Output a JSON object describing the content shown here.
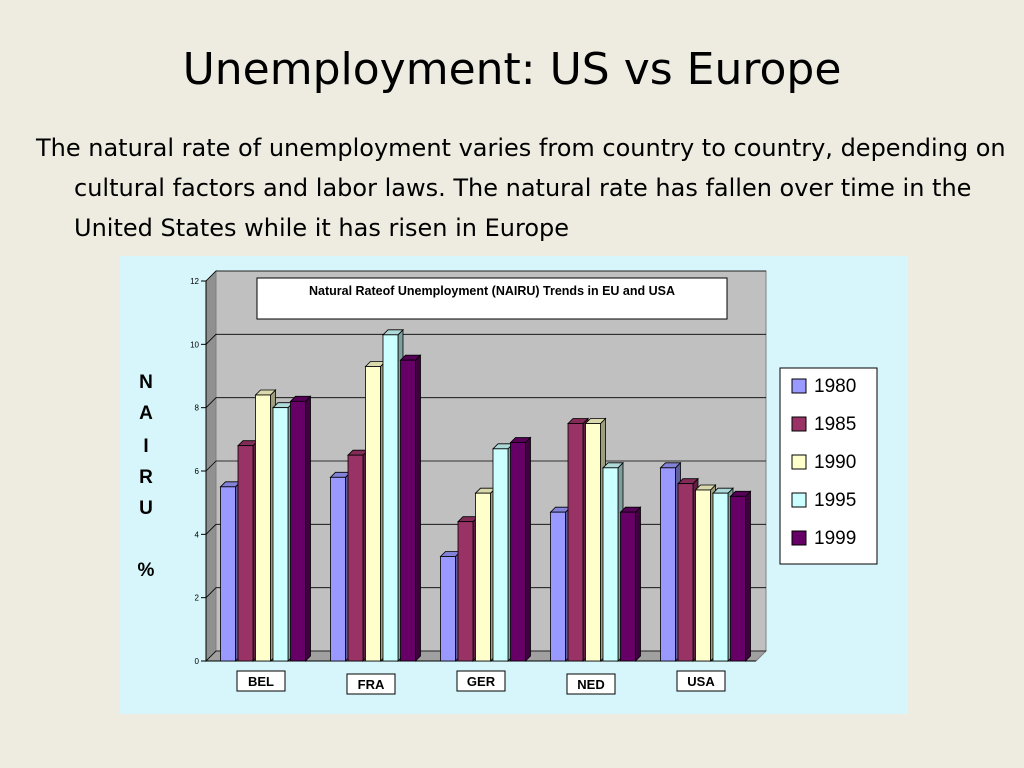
{
  "slide": {
    "title": "Unemployment: US vs Europe",
    "body": "The natural rate of unemployment varies from country to country, depending on cultural factors and labor laws. The natural rate has fallen over time in the United States while it has risen in Europe"
  },
  "chart_data": {
    "type": "bar",
    "title": "Natural Rateof Unemployment (NAIRU) Trends in EU and USA",
    "ylabel": "NAIRU %",
    "ylabel_letters": [
      "N",
      "A",
      "I",
      "R",
      "U",
      "%"
    ],
    "xlabel": "",
    "ylim": [
      0,
      12
    ],
    "yticks": [
      0,
      2,
      4,
      6,
      8,
      10,
      12
    ],
    "grid": true,
    "legend_position": "right",
    "categories": [
      "BEL",
      "FRA",
      "GER",
      "NED",
      "USA"
    ],
    "series": [
      {
        "name": "1980",
        "color": "#9999ff",
        "values": [
          5.5,
          5.8,
          3.3,
          4.7,
          6.1
        ]
      },
      {
        "name": "1985",
        "color": "#993366",
        "values": [
          6.8,
          6.5,
          4.4,
          7.5,
          5.6
        ]
      },
      {
        "name": "1990",
        "color": "#ffffcc",
        "values": [
          8.4,
          9.3,
          5.3,
          7.5,
          5.4
        ]
      },
      {
        "name": "1995",
        "color": "#ccffff",
        "values": [
          8.0,
          10.3,
          6.7,
          6.1,
          5.3
        ]
      },
      {
        "name": "1999",
        "color": "#660066",
        "values": [
          8.2,
          9.5,
          6.9,
          4.7,
          5.2
        ]
      }
    ]
  }
}
